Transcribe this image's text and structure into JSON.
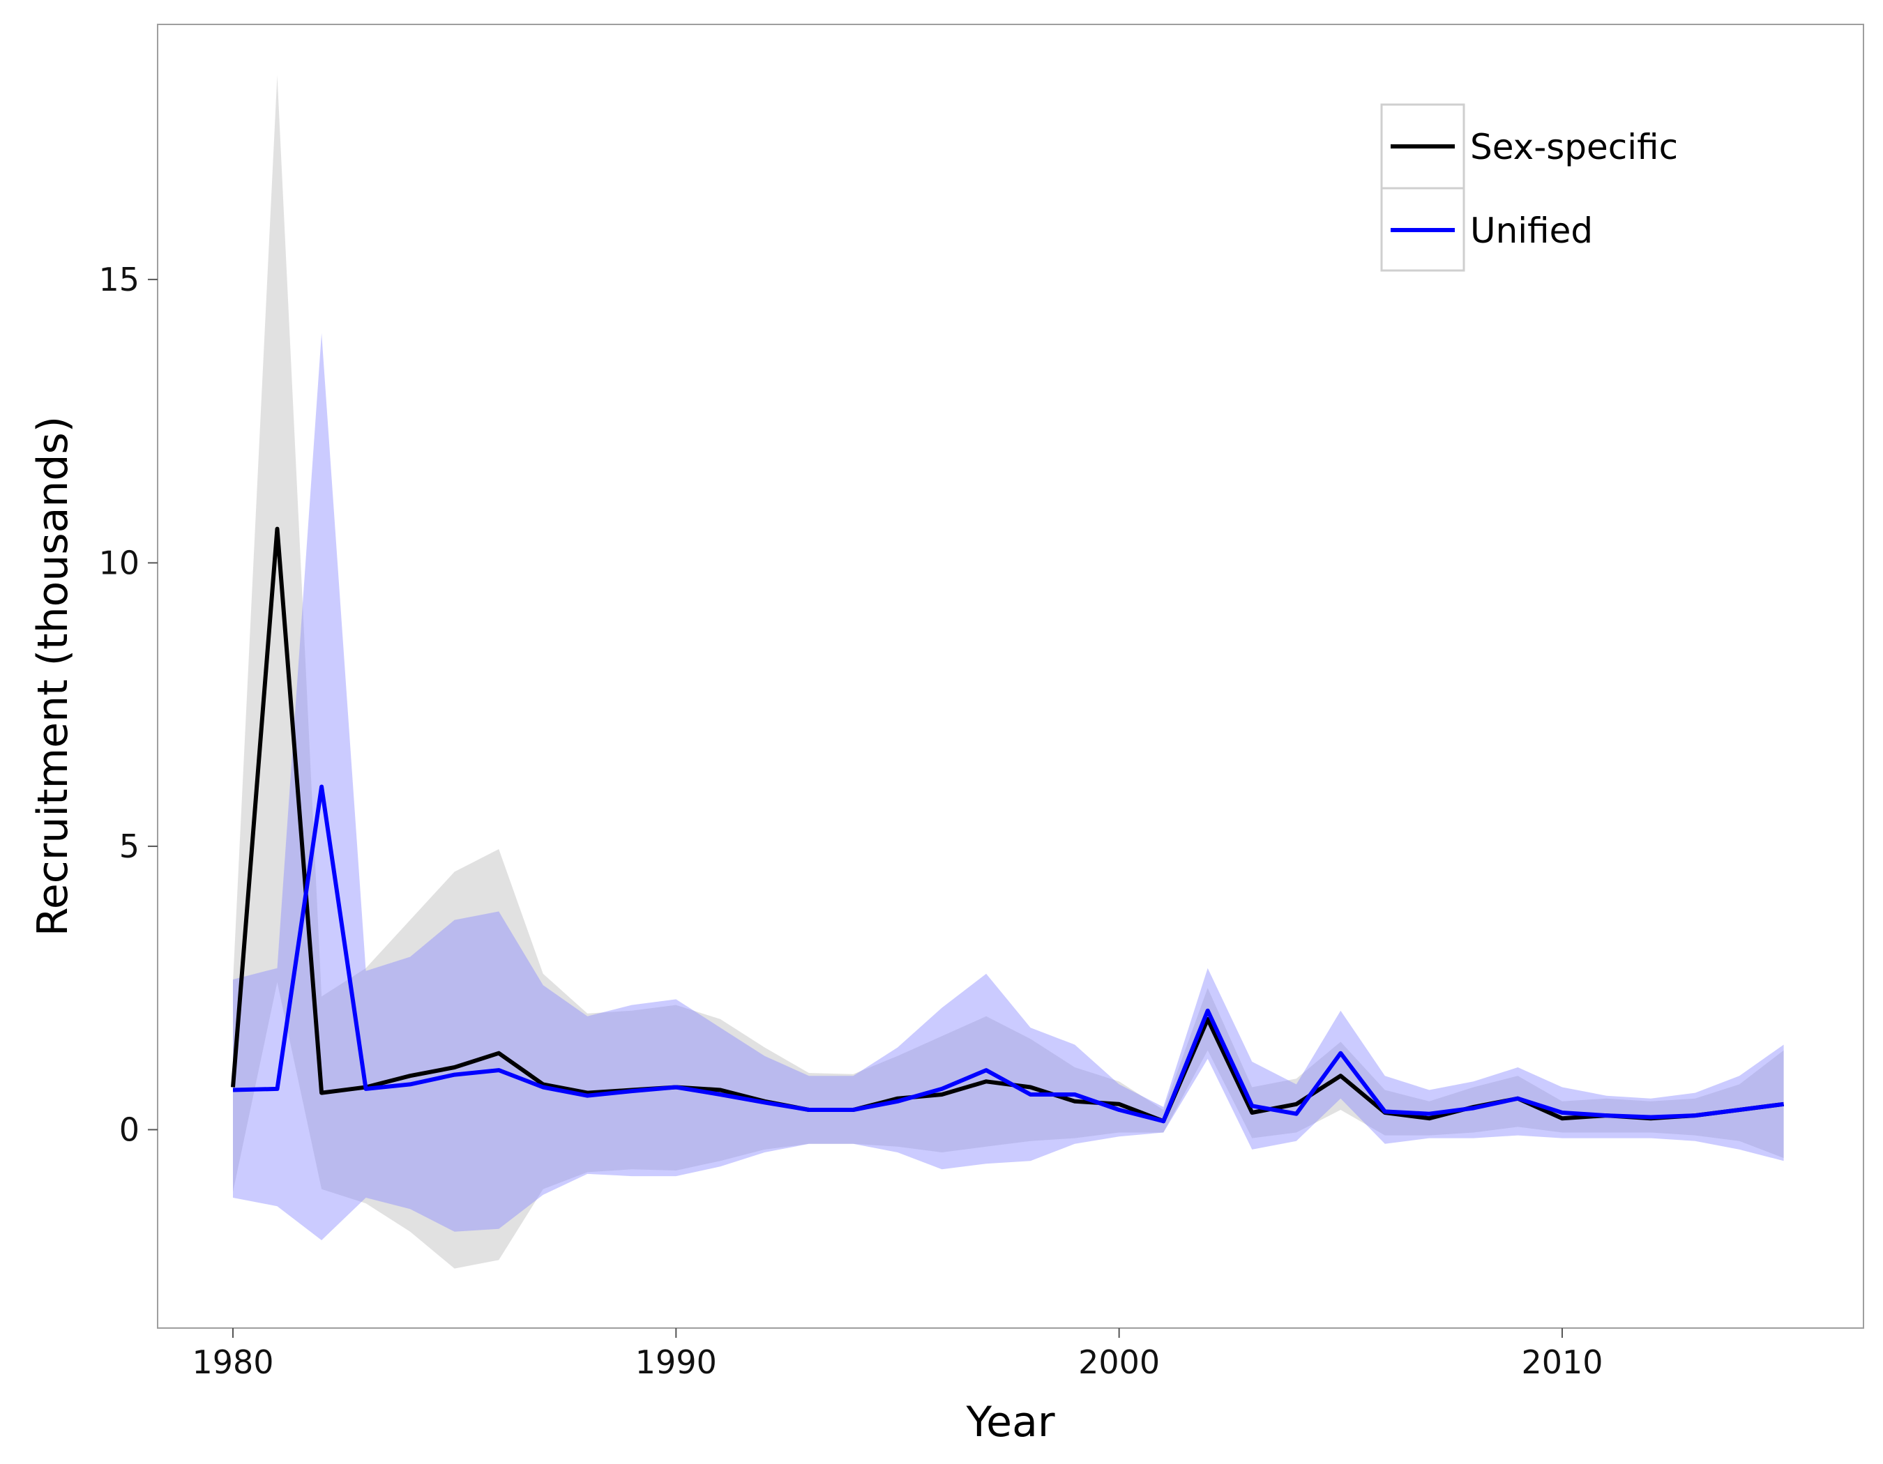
{
  "chart_data": {
    "type": "line",
    "xlabel": "Year",
    "ylabel": "Recruitment (thousands)",
    "xlim": [
      1978.3,
      2016.8
    ],
    "ylim": [
      -3.5,
      19.5
    ],
    "x_ticks": [
      1980,
      1990,
      2000,
      2010
    ],
    "y_ticks": [
      0,
      5,
      10,
      15
    ],
    "legend_position": "top-right",
    "x": [
      1980,
      1981,
      1982,
      1983,
      1984,
      1985,
      1986,
      1987,
      1988,
      1989,
      1990,
      1991,
      1992,
      1993,
      1994,
      1995,
      1996,
      1997,
      1998,
      1999,
      2000,
      2001,
      2002,
      2003,
      2004,
      2005,
      2006,
      2007,
      2008,
      2009,
      2010,
      2011,
      2012,
      2013,
      2014,
      2015
    ],
    "series": [
      {
        "name": "Sex-specific",
        "color": "#000000",
        "band_color": "#bdbdbd",
        "values": [
          0.75,
          10.6,
          0.65,
          0.75,
          0.95,
          1.1,
          1.35,
          0.8,
          0.65,
          0.7,
          0.75,
          0.7,
          0.5,
          0.35,
          0.35,
          0.55,
          0.62,
          0.85,
          0.75,
          0.5,
          0.45,
          0.15,
          1.95,
          0.3,
          0.45,
          0.95,
          0.3,
          0.2,
          0.4,
          0.55,
          0.2,
          0.25,
          0.2,
          0.25,
          0.35,
          0.45
        ],
        "lower": [
          -1.1,
          2.6,
          -1.05,
          -1.3,
          -1.8,
          -2.45,
          -2.3,
          -1.05,
          -0.75,
          -0.7,
          -0.72,
          -0.55,
          -0.35,
          -0.25,
          -0.25,
          -0.3,
          -0.4,
          -0.3,
          -0.2,
          -0.15,
          -0.05,
          -0.05,
          1.4,
          -0.15,
          -0.05,
          0.35,
          -0.1,
          -0.1,
          -0.05,
          0.05,
          -0.05,
          -0.05,
          -0.05,
          -0.1,
          -0.2,
          -0.5
        ],
        "upper": [
          2.6,
          18.6,
          2.35,
          2.85,
          3.7,
          4.55,
          4.95,
          2.75,
          2.05,
          2.1,
          2.2,
          1.95,
          1.45,
          1.0,
          0.98,
          1.3,
          1.65,
          2.0,
          1.6,
          1.1,
          0.85,
          0.35,
          2.5,
          0.75,
          0.9,
          1.55,
          0.7,
          0.5,
          0.75,
          0.95,
          0.5,
          0.55,
          0.5,
          0.55,
          0.8,
          1.4
        ]
      },
      {
        "name": "Unified",
        "color": "#0000ff",
        "band_color": "#8c8cff",
        "values": [
          0.7,
          0.72,
          6.05,
          0.72,
          0.8,
          0.97,
          1.05,
          0.75,
          0.6,
          0.68,
          0.75,
          0.62,
          0.48,
          0.35,
          0.35,
          0.5,
          0.72,
          1.05,
          0.62,
          0.62,
          0.35,
          0.15,
          2.1,
          0.42,
          0.28,
          1.35,
          0.32,
          0.28,
          0.38,
          0.55,
          0.3,
          0.25,
          0.22,
          0.25,
          0.35,
          0.45
        ],
        "lower": [
          -1.2,
          -1.35,
          -1.95,
          -1.2,
          -1.4,
          -1.8,
          -1.75,
          -1.15,
          -0.78,
          -0.82,
          -0.82,
          -0.65,
          -0.4,
          -0.25,
          -0.25,
          -0.4,
          -0.7,
          -0.6,
          -0.55,
          -0.25,
          -0.12,
          -0.05,
          1.25,
          -0.35,
          -0.2,
          0.55,
          -0.25,
          -0.15,
          -0.15,
          -0.1,
          -0.15,
          -0.15,
          -0.15,
          -0.2,
          -0.35,
          -0.55
        ],
        "upper": [
          2.65,
          2.85,
          14.05,
          2.8,
          3.05,
          3.7,
          3.85,
          2.55,
          2.0,
          2.2,
          2.3,
          1.8,
          1.3,
          0.95,
          0.95,
          1.45,
          2.15,
          2.75,
          1.8,
          1.5,
          0.8,
          0.4,
          2.85,
          1.2,
          0.8,
          2.1,
          0.95,
          0.7,
          0.85,
          1.1,
          0.75,
          0.6,
          0.55,
          0.65,
          0.95,
          1.5
        ]
      }
    ]
  }
}
